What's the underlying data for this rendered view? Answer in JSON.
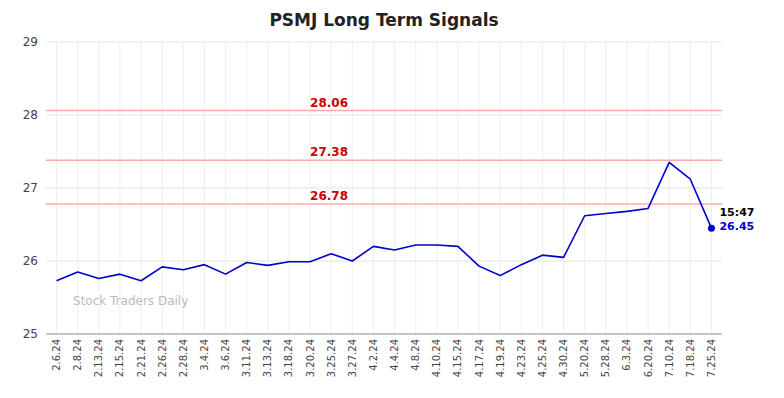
{
  "chart_data": {
    "type": "line",
    "title": "PSMJ Long Term Signals",
    "categories": [
      "2.6.24",
      "2.8.24",
      "2.13.24",
      "2.15.24",
      "2.21.24",
      "2.26.24",
      "2.28.24",
      "3.4.24",
      "3.6.24",
      "3.11.24",
      "3.13.24",
      "3.18.24",
      "3.20.24",
      "3.25.24",
      "3.27.24",
      "4.2.24",
      "4.4.24",
      "4.8.24",
      "4.10.24",
      "4.15.24",
      "4.17.24",
      "4.19.24",
      "4.23.24",
      "4.25.24",
      "4.30.24",
      "5.20.24",
      "5.28.24",
      "6.3.24",
      "6.20.24",
      "7.10.24",
      "7.18.24",
      "7.25.24"
    ],
    "values": [
      25.73,
      25.85,
      25.76,
      25.82,
      25.73,
      25.92,
      25.88,
      25.95,
      25.82,
      25.98,
      25.94,
      25.99,
      25.99,
      26.1,
      26.0,
      26.2,
      26.15,
      26.22,
      26.22,
      26.2,
      25.93,
      25.8,
      25.95,
      26.08,
      26.05,
      26.62,
      26.65,
      26.68,
      26.72,
      27.35,
      27.12,
      26.45
    ],
    "color": "#0000cc",
    "ylim": [
      25.0,
      29.0
    ],
    "yticks": [
      25,
      26,
      27,
      28,
      29
    ],
    "grid": true,
    "hlines": {
      "values": [
        28.06,
        27.38,
        26.78
      ],
      "color": "#ffaaaa",
      "label_color": "#cc0000"
    },
    "watermark": {
      "text": "Stock Traders Daily",
      "color": "#bbbbbb"
    },
    "annotations": [
      {
        "text": "15:47",
        "color": "#000000"
      },
      {
        "text": "26.45",
        "color": "#0000cc"
      }
    ]
  }
}
